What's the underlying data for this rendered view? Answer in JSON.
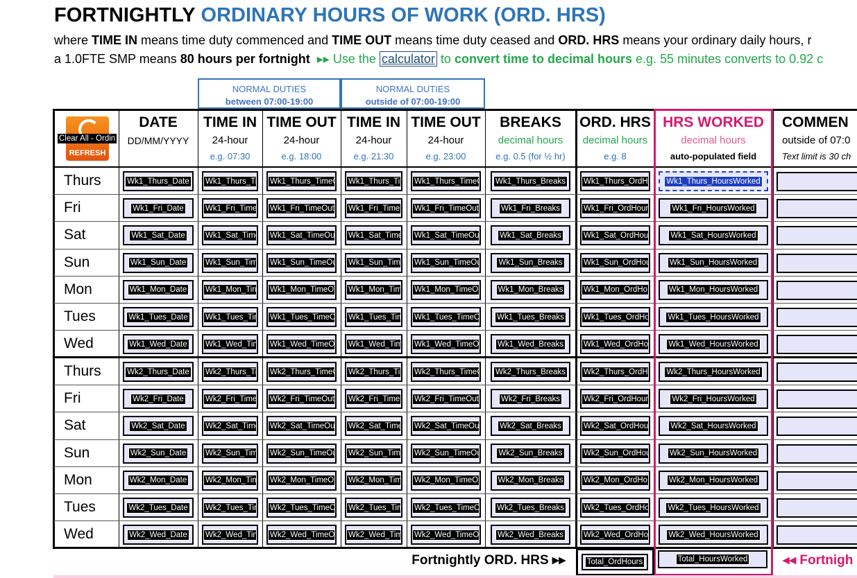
{
  "header": {
    "title_black": "FORTNIGHTLY",
    "title_blue": "ORDINARY HOURS OF WORK (ORD. HRS)",
    "intro": [
      [
        {
          "text": "where "
        },
        {
          "text": "TIME IN",
          "bold": true
        },
        {
          "text": " means time duty commenced and "
        },
        {
          "text": "TIME OUT",
          "bold": true
        },
        {
          "text": " means time duty ceased and "
        },
        {
          "text": "ORD. HRS",
          "bold": true
        },
        {
          "text": " means your ordinary daily hours, r"
        }
      ],
      [
        {
          "text": "a 1.0FTE SMP means "
        },
        {
          "text": "80 hours per fortnight",
          "bold": true
        },
        {
          "text": "  ▸▸ Use the ",
          "color": "#22a84a"
        },
        {
          "text": "calculator",
          "link": true
        },
        {
          "text": " to ",
          "color": "#22a84a"
        },
        {
          "text": "convert time to decimal hours",
          "bold": true,
          "color": "#22a84a"
        },
        {
          "text": " e.g. 55 minutes converts to 0.92 c",
          "color": "#22a84a"
        }
      ]
    ]
  },
  "groups": [
    [
      "NORMAL DUTIES",
      "between 07:00-19:00"
    ],
    [
      "NORMAL DUTIES",
      "outside of 07:00-19:00"
    ]
  ],
  "button": {
    "label": "Clear All - Ordin",
    "action": "REFRESH"
  },
  "columns": [
    [
      "DATE",
      "DD/MM/YYYY"
    ],
    [
      "TIME IN",
      "24-hour",
      "e.g. 07:30"
    ],
    [
      "TIME OUT",
      "24-hour",
      "e.g. 18:00"
    ],
    [
      "TIME IN",
      "24-hour",
      "e.g. 21:30"
    ],
    [
      "TIME OUT",
      "24-hour",
      "e.g. 23:00"
    ],
    [
      "BREAKS",
      "decimal hours",
      "e.g.  0.5 (for ½ hr)"
    ],
    [
      "ORD. HRS",
      "decimal hours",
      "e.g. 8"
    ],
    [
      "HRS WORKED",
      "decimal hours",
      "auto-populated field"
    ],
    [
      "COMMEN",
      "outside of 07:0",
      "Text limit is 30 ch"
    ]
  ],
  "weeks": [
    [
      [
        "Thurs",
        "Wk1_Thurs_Date",
        "Wk1_Thurs_Ti",
        "Wk1_Thurs_TimeO",
        "Wk1_Thurs_Tim",
        "Wk1_Thurs_TimeC",
        "Wk1_Thurs_Breaks",
        "Wk1_Thurs_OrdH",
        "Wk1_Thurs_HoursWorked"
      ],
      [
        "Fri",
        "Wk1_Fri_Date",
        "Wk1_Fri_Time",
        "Wk1_Fri_TimeOut",
        "Wk1_Fri_TimeI",
        "Wk1_Fri_TimeOut_",
        "Wk1_Fri_Breaks",
        "Wk1_Fri_OrdHour",
        "Wk1_Fri_HoursWorked"
      ],
      [
        "Sat",
        "Wk1_Sat_Date",
        "Wk1_Sat_Time",
        "Wk1_Sat_TimeOu",
        "Wk1_Sat_Time",
        "Wk1_Sat_TimeOut",
        "Wk1_Sat_Breaks",
        "Wk1_Sat_OrdHou",
        "Wk1_Sat_HoursWorked"
      ],
      [
        "Sun",
        "Wk1_Sun_Date",
        "Wk1_Sun_Tim",
        "Wk1_Sun_TimeOu",
        "Wk1_Sun_Time",
        "Wk1_Sun_TimeOu",
        "Wk1_Sun_Breaks",
        "Wk1_Sun_OrdHou",
        "Wk1_Sun_HoursWorked"
      ],
      [
        "Mon",
        "Wk1_Mon_Date",
        "Wk1_Mon_Tin",
        "Wk1_Mon_TimeO",
        "Wk1_Mon_Tim",
        "Wk1_Mon_TimeO",
        "Wk1_Mon_Breaks",
        "Wk1_Mon_OrdHo",
        "Wk1_Mon_HoursWorked"
      ],
      [
        "Tues",
        "Wk1_Tues_Date",
        "Wk1_Tues_Tin",
        "Wk1_Tues_TimeO",
        "Wk1_Tues_Tim",
        "Wk1_Tues_TimeO",
        "Wk1_Tues_Breaks",
        "Wk1_Tues_OrdHo",
        "Wk1_Tues_HoursWorked"
      ],
      [
        "Wed",
        "Wk1_Wed_Date",
        "Wk1_Wed_Tin",
        "Wk1_Wed_TimeO",
        "Wk1_Wed_Tim",
        "Wk1_Wed_TimeO",
        "Wk1_Wed_Breaks",
        "Wk1_Wed_OrdHo",
        "Wk1_Wed_HoursWorked"
      ]
    ],
    [
      [
        "Thurs",
        "Wk2_Thurs_Date",
        "Wk2_Thurs_Ti",
        "Wk2_Thurs_TimeO",
        "Wk2_Thurs_Tim",
        "Wk2_Thurs_TimeC",
        "Wk2_Thurs_Breaks",
        "Wk2_Thurs_OrdH",
        "Wk2_Thurs_HoursWorked"
      ],
      [
        "Fri",
        "Wk2_Fri_Date",
        "Wk2_Fri_Time",
        "Wk2_Fri_TimeOut",
        "Wk2_Fri_TimeI",
        "Wk2_Fri_TimeOut",
        "Wk2_Fri_Breaks",
        "Wk2_Fri_OrdHour",
        "Wk2_Fri_HoursWorked"
      ],
      [
        "Sat",
        "Wk2_Sat_Date",
        "Wk2_Sat_Time",
        "Wk2_Sat_TimeOut",
        "Wk2_Sat_Time",
        "Wk2_Sat_TimeOut",
        "Wk2_Sat_Breaks",
        "Wk2_Sat_OrdHou",
        "Wk2_Sat_HoursWorked"
      ],
      [
        "Sun",
        "Wk2_Sun_Date",
        "Wk2_Sun_Tim",
        "Wk2_Sun_TimeOu",
        "Wk2_Sun_Time",
        "Wk2_Sun_TimeOu",
        "Wk2_Sun_Breaks",
        "Wk2_Sun_OrdHou",
        "Wk2_Sun_HoursWorked"
      ],
      [
        "Mon",
        "Wk2_Mon_Date",
        "Wk2_Mon_Tin",
        "Wk2_Mon_TimeO",
        "Wk2_Mon_Tim",
        "Wk2_Mon_TimeO",
        "Wk2_Mon_Breaks",
        "Wk2_Mon_OrdHo",
        "Wk2_Mon_HoursWorked"
      ],
      [
        "Tues",
        "Wk2_Tues_Date",
        "Wk2_Tues_Tin",
        "Wk2_Tues_TimeO",
        "Wk2_Tues_Tim",
        "Wk2_Tues_TimeO",
        "Wk2_Tues_Breaks",
        "Wk2_Tues_OrdHo",
        "Wk2_Tues_HoursWorked"
      ],
      [
        "Wed",
        "Wk2_Wed_Date",
        "Wk2_Wed_Tin",
        "Wk2_Wed_TimeO",
        "Wk2_Wed_Tim",
        "Wk2_Wed_TimeO",
        "Wk2_Wed_Breaks",
        "Wk2_Wed_OrdHo",
        "Wk2_Wed_HoursWorked"
      ]
    ]
  ],
  "totals": {
    "label": "Fortnightly ORD. HRS ▸▸",
    "ord": "Total_OrdHours",
    "worked": "Total_HoursWorked",
    "right": "◂◂ Fortnigh"
  }
}
